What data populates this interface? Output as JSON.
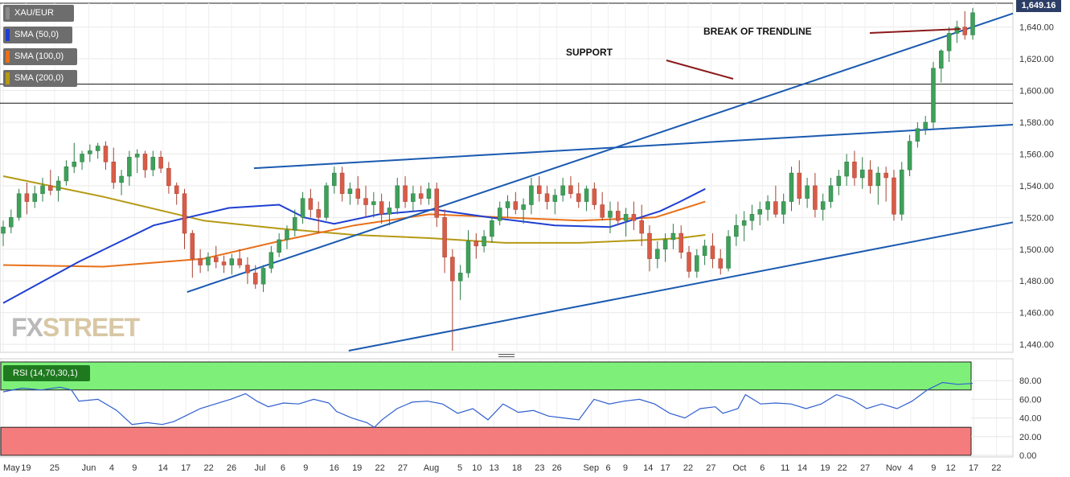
{
  "chart_data": {
    "type": "candlestick",
    "symbol": "XAU/EUR",
    "last_price_label": "1,649.16",
    "y_axis": {
      "range": [
        1435,
        1655
      ],
      "ticks": [
        "1,440.00",
        "1,460.00",
        "1,480.00",
        "1,500.00",
        "1,520.00",
        "1,540.00",
        "1,560.00",
        "1,580.00",
        "1,600.00",
        "1,620.00",
        "1,640.00"
      ],
      "tick_values": [
        1440,
        1460,
        1480,
        1500,
        1520,
        1540,
        1560,
        1580,
        1600,
        1620,
        1640
      ]
    },
    "x_axis": {
      "ticks": [
        "May",
        "19",
        "25",
        "Jun",
        "4",
        "9",
        "14",
        "17",
        "22",
        "26",
        "Jul",
        "6",
        "9",
        "16",
        "19",
        "22",
        "27",
        "Aug",
        "5",
        "10",
        "13",
        "18",
        "23",
        "26",
        "Sep",
        "6",
        "9",
        "14",
        "17",
        "22",
        "27",
        "Oct",
        "6",
        "11",
        "14",
        "19",
        "22",
        "27",
        "Nov",
        "4",
        "9",
        "12",
        "17",
        "22"
      ],
      "tick_index": [
        0,
        4,
        9,
        15,
        19,
        23,
        28,
        32,
        36,
        40,
        45,
        49,
        53,
        58,
        62,
        66,
        70,
        75,
        80,
        83,
        86,
        90,
        94,
        97,
        103,
        106,
        109,
        113,
        116,
        120,
        124,
        129,
        133,
        137,
        140,
        144,
        147,
        151,
        156,
        159,
        163,
        166,
        170,
        174
      ]
    },
    "legend": [
      {
        "label": "XAU/EUR",
        "color": "#6d6d6d"
      },
      {
        "label": "SMA (50,0)",
        "color": "#1f3fd1"
      },
      {
        "label": "SMA (100,0)",
        "color": "#e8701a"
      },
      {
        "label": "SMA (200,0)",
        "color": "#b59a14"
      }
    ],
    "annotations": [
      "SUPPORT",
      "BREAK OF TRENDLINE"
    ],
    "horizontal_levels": [
      1604,
      1592
    ],
    "candles_ohlc": [
      [
        1510,
        1518,
        1502,
        1514
      ],
      [
        1514,
        1525,
        1510,
        1520
      ],
      [
        1520,
        1538,
        1518,
        1535
      ],
      [
        1535,
        1542,
        1522,
        1530
      ],
      [
        1530,
        1540,
        1526,
        1535
      ],
      [
        1535,
        1545,
        1530,
        1540
      ],
      [
        1540,
        1550,
        1534,
        1537
      ],
      [
        1537,
        1546,
        1530,
        1543
      ],
      [
        1543,
        1556,
        1540,
        1552
      ],
      [
        1552,
        1567,
        1548,
        1555
      ],
      [
        1555,
        1562,
        1550,
        1560
      ],
      [
        1560,
        1566,
        1555,
        1562
      ],
      [
        1562,
        1567,
        1557,
        1565
      ],
      [
        1565,
        1568,
        1550,
        1555
      ],
      [
        1555,
        1564,
        1538,
        1542
      ],
      [
        1542,
        1550,
        1534,
        1546
      ],
      [
        1546,
        1562,
        1540,
        1558
      ],
      [
        1558,
        1563,
        1548,
        1560
      ],
      [
        1560,
        1562,
        1545,
        1550
      ],
      [
        1550,
        1562,
        1546,
        1558
      ],
      [
        1558,
        1562,
        1548,
        1551
      ],
      [
        1551,
        1555,
        1535,
        1540
      ],
      [
        1540,
        1542,
        1528,
        1535
      ],
      [
        1535,
        1538,
        1500,
        1510
      ],
      [
        1510,
        1512,
        1482,
        1494
      ],
      [
        1494,
        1500,
        1485,
        1490
      ],
      [
        1490,
        1498,
        1486,
        1495
      ],
      [
        1495,
        1502,
        1488,
        1492
      ],
      [
        1492,
        1496,
        1485,
        1490
      ],
      [
        1490,
        1497,
        1484,
        1494
      ],
      [
        1494,
        1500,
        1488,
        1490
      ],
      [
        1490,
        1495,
        1478,
        1485
      ],
      [
        1485,
        1490,
        1475,
        1478
      ],
      [
        1478,
        1490,
        1473,
        1488
      ],
      [
        1488,
        1502,
        1485,
        1498
      ],
      [
        1498,
        1510,
        1495,
        1506
      ],
      [
        1506,
        1515,
        1500,
        1512
      ],
      [
        1512,
        1525,
        1508,
        1520
      ],
      [
        1520,
        1536,
        1516,
        1532
      ],
      [
        1532,
        1538,
        1520,
        1525
      ],
      [
        1525,
        1530,
        1510,
        1520
      ],
      [
        1520,
        1542,
        1518,
        1540
      ],
      [
        1540,
        1552,
        1535,
        1548
      ],
      [
        1548,
        1552,
        1530,
        1535
      ],
      [
        1535,
        1542,
        1528,
        1538
      ],
      [
        1538,
        1546,
        1528,
        1532
      ],
      [
        1532,
        1540,
        1520,
        1528
      ],
      [
        1528,
        1536,
        1520,
        1530
      ],
      [
        1530,
        1535,
        1516,
        1522
      ],
      [
        1522,
        1530,
        1515,
        1526
      ],
      [
        1526,
        1545,
        1522,
        1540
      ],
      [
        1540,
        1546,
        1526,
        1530
      ],
      [
        1530,
        1540,
        1524,
        1535
      ],
      [
        1535,
        1540,
        1528,
        1532
      ],
      [
        1532,
        1542,
        1528,
        1538
      ],
      [
        1538,
        1542,
        1514,
        1520
      ],
      [
        1520,
        1525,
        1485,
        1495
      ],
      [
        1495,
        1500,
        1436,
        1480
      ],
      [
        1480,
        1490,
        1468,
        1485
      ],
      [
        1485,
        1512,
        1482,
        1505
      ],
      [
        1505,
        1510,
        1494,
        1502
      ],
      [
        1502,
        1512,
        1498,
        1508
      ],
      [
        1508,
        1520,
        1504,
        1518
      ],
      [
        1518,
        1530,
        1515,
        1526
      ],
      [
        1526,
        1534,
        1520,
        1530
      ],
      [
        1530,
        1536,
        1522,
        1525
      ],
      [
        1525,
        1532,
        1516,
        1528
      ],
      [
        1528,
        1545,
        1522,
        1540
      ],
      [
        1540,
        1546,
        1530,
        1535
      ],
      [
        1535,
        1540,
        1525,
        1530
      ],
      [
        1530,
        1538,
        1522,
        1534
      ],
      [
        1534,
        1545,
        1530,
        1540
      ],
      [
        1540,
        1546,
        1532,
        1535
      ],
      [
        1535,
        1542,
        1526,
        1530
      ],
      [
        1530,
        1540,
        1524,
        1538
      ],
      [
        1538,
        1542,
        1525,
        1528
      ],
      [
        1528,
        1536,
        1518,
        1520
      ],
      [
        1520,
        1530,
        1510,
        1524
      ],
      [
        1524,
        1530,
        1515,
        1518
      ],
      [
        1518,
        1526,
        1508,
        1522
      ],
      [
        1522,
        1530,
        1512,
        1518
      ],
      [
        1518,
        1528,
        1502,
        1510
      ],
      [
        1510,
        1515,
        1486,
        1494
      ],
      [
        1494,
        1505,
        1488,
        1500
      ],
      [
        1500,
        1510,
        1492,
        1506
      ],
      [
        1506,
        1516,
        1500,
        1510
      ],
      [
        1510,
        1515,
        1494,
        1498
      ],
      [
        1498,
        1502,
        1482,
        1486
      ],
      [
        1486,
        1500,
        1482,
        1496
      ],
      [
        1496,
        1506,
        1490,
        1502
      ],
      [
        1502,
        1510,
        1488,
        1494
      ],
      [
        1494,
        1500,
        1484,
        1488
      ],
      [
        1488,
        1512,
        1486,
        1508
      ],
      [
        1508,
        1522,
        1502,
        1515
      ],
      [
        1515,
        1524,
        1505,
        1518
      ],
      [
        1518,
        1528,
        1512,
        1522
      ],
      [
        1522,
        1530,
        1515,
        1525
      ],
      [
        1525,
        1534,
        1518,
        1530
      ],
      [
        1530,
        1540,
        1520,
        1522
      ],
      [
        1522,
        1535,
        1516,
        1530
      ],
      [
        1530,
        1552,
        1524,
        1548
      ],
      [
        1548,
        1556,
        1528,
        1532
      ],
      [
        1532,
        1545,
        1526,
        1540
      ],
      [
        1540,
        1548,
        1520,
        1525
      ],
      [
        1525,
        1535,
        1518,
        1530
      ],
      [
        1530,
        1545,
        1526,
        1540
      ],
      [
        1540,
        1550,
        1534,
        1546
      ],
      [
        1546,
        1560,
        1540,
        1555
      ],
      [
        1555,
        1562,
        1540,
        1545
      ],
      [
        1545,
        1558,
        1538,
        1550
      ],
      [
        1550,
        1556,
        1535,
        1540
      ],
      [
        1540,
        1552,
        1528,
        1548
      ],
      [
        1548,
        1552,
        1530,
        1545
      ],
      [
        1545,
        1550,
        1518,
        1522
      ],
      [
        1522,
        1555,
        1518,
        1550
      ],
      [
        1550,
        1572,
        1546,
        1568
      ],
      [
        1568,
        1580,
        1564,
        1576
      ],
      [
        1576,
        1584,
        1572,
        1580
      ],
      [
        1580,
        1618,
        1576,
        1614
      ],
      [
        1614,
        1626,
        1605,
        1625
      ],
      [
        1625,
        1640,
        1618,
        1636
      ],
      [
        1636,
        1644,
        1630,
        1640
      ],
      [
        1640,
        1650,
        1632,
        1635
      ],
      [
        1635,
        1652,
        1632,
        1649
      ]
    ],
    "trendlines": [
      {
        "from": [
          33,
          1473
        ],
        "to": [
          174,
          1640
        ]
      },
      {
        "from": [
          45,
          1551
        ],
        "to": [
          174,
          1577
        ]
      },
      {
        "from": [
          62,
          1436
        ],
        "to": [
          174,
          1512
        ]
      }
    ],
    "sma_50": [
      [
        0,
        1466
      ],
      [
        15,
        1492
      ],
      [
        30,
        1515
      ],
      [
        45,
        1526
      ],
      [
        55,
        1528
      ],
      [
        60,
        1520
      ],
      [
        66,
        1516
      ],
      [
        75,
        1522
      ],
      [
        86,
        1525
      ],
      [
        97,
        1520
      ],
      [
        110,
        1515
      ],
      [
        121,
        1514
      ],
      [
        131,
        1524
      ],
      [
        135,
        1530
      ],
      [
        140,
        1538
      ]
    ],
    "sma_100": [
      [
        0,
        1490
      ],
      [
        20,
        1489
      ],
      [
        40,
        1494
      ],
      [
        55,
        1505
      ],
      [
        70,
        1515
      ],
      [
        85,
        1522
      ],
      [
        100,
        1520
      ],
      [
        115,
        1518
      ],
      [
        130,
        1520
      ],
      [
        135,
        1525
      ],
      [
        140,
        1530
      ]
    ],
    "sma_200": [
      [
        0,
        1546
      ],
      [
        20,
        1533
      ],
      [
        40,
        1518
      ],
      [
        55,
        1513
      ],
      [
        70,
        1509
      ],
      [
        85,
        1507
      ],
      [
        100,
        1504
      ],
      [
        115,
        1504
      ],
      [
        130,
        1506
      ],
      [
        135,
        1507
      ],
      [
        140,
        1509
      ]
    ],
    "rsi": {
      "label": "RSI (14,70,30,1)",
      "range": [
        0,
        100
      ],
      "ticks": [
        "0.00",
        "20.00",
        "40.00",
        "60.00",
        "80.00"
      ],
      "tick_values": [
        0,
        20,
        40,
        60,
        80
      ],
      "overbought": 70,
      "oversold": 30,
      "values": [
        [
          0,
          68
        ],
        [
          5,
          72
        ],
        [
          10,
          70
        ],
        [
          15,
          73
        ],
        [
          18,
          70
        ],
        [
          20,
          58
        ],
        [
          25,
          60
        ],
        [
          30,
          48
        ],
        [
          34,
          33
        ],
        [
          38,
          35
        ],
        [
          42,
          33
        ],
        [
          45,
          36
        ],
        [
          48,
          42
        ],
        [
          52,
          50
        ],
        [
          56,
          55
        ],
        [
          60,
          60
        ],
        [
          64,
          66
        ],
        [
          67,
          58
        ],
        [
          70,
          52
        ],
        [
          74,
          56
        ],
        [
          78,
          55
        ],
        [
          82,
          60
        ],
        [
          86,
          56
        ],
        [
          88,
          47
        ],
        [
          92,
          40
        ],
        [
          96,
          35
        ],
        [
          98,
          30
        ],
        [
          100,
          38
        ],
        [
          104,
          50
        ],
        [
          108,
          57
        ],
        [
          112,
          58
        ],
        [
          116,
          55
        ],
        [
          120,
          45
        ],
        [
          124,
          50
        ],
        [
          128,
          38
        ],
        [
          132,
          55
        ],
        [
          136,
          46
        ],
        [
          140,
          48
        ],
        [
          144,
          42
        ],
        [
          148,
          40
        ],
        [
          152,
          38
        ],
        [
          156,
          60
        ],
        [
          160,
          55
        ],
        [
          164,
          58
        ],
        [
          168,
          60
        ],
        [
          172,
          55
        ],
        [
          176,
          45
        ],
        [
          180,
          40
        ],
        [
          184,
          50
        ],
        [
          188,
          52
        ],
        [
          190,
          45
        ],
        [
          194,
          50
        ],
        [
          196,
          65
        ],
        [
          200,
          55
        ],
        [
          204,
          56
        ],
        [
          208,
          55
        ],
        [
          212,
          50
        ],
        [
          216,
          55
        ],
        [
          220,
          65
        ],
        [
          224,
          60
        ],
        [
          228,
          50
        ],
        [
          232,
          55
        ],
        [
          236,
          50
        ],
        [
          240,
          58
        ],
        [
          244,
          70
        ],
        [
          248,
          78
        ],
        [
          252,
          76
        ],
        [
          256,
          77
        ]
      ]
    }
  }
}
